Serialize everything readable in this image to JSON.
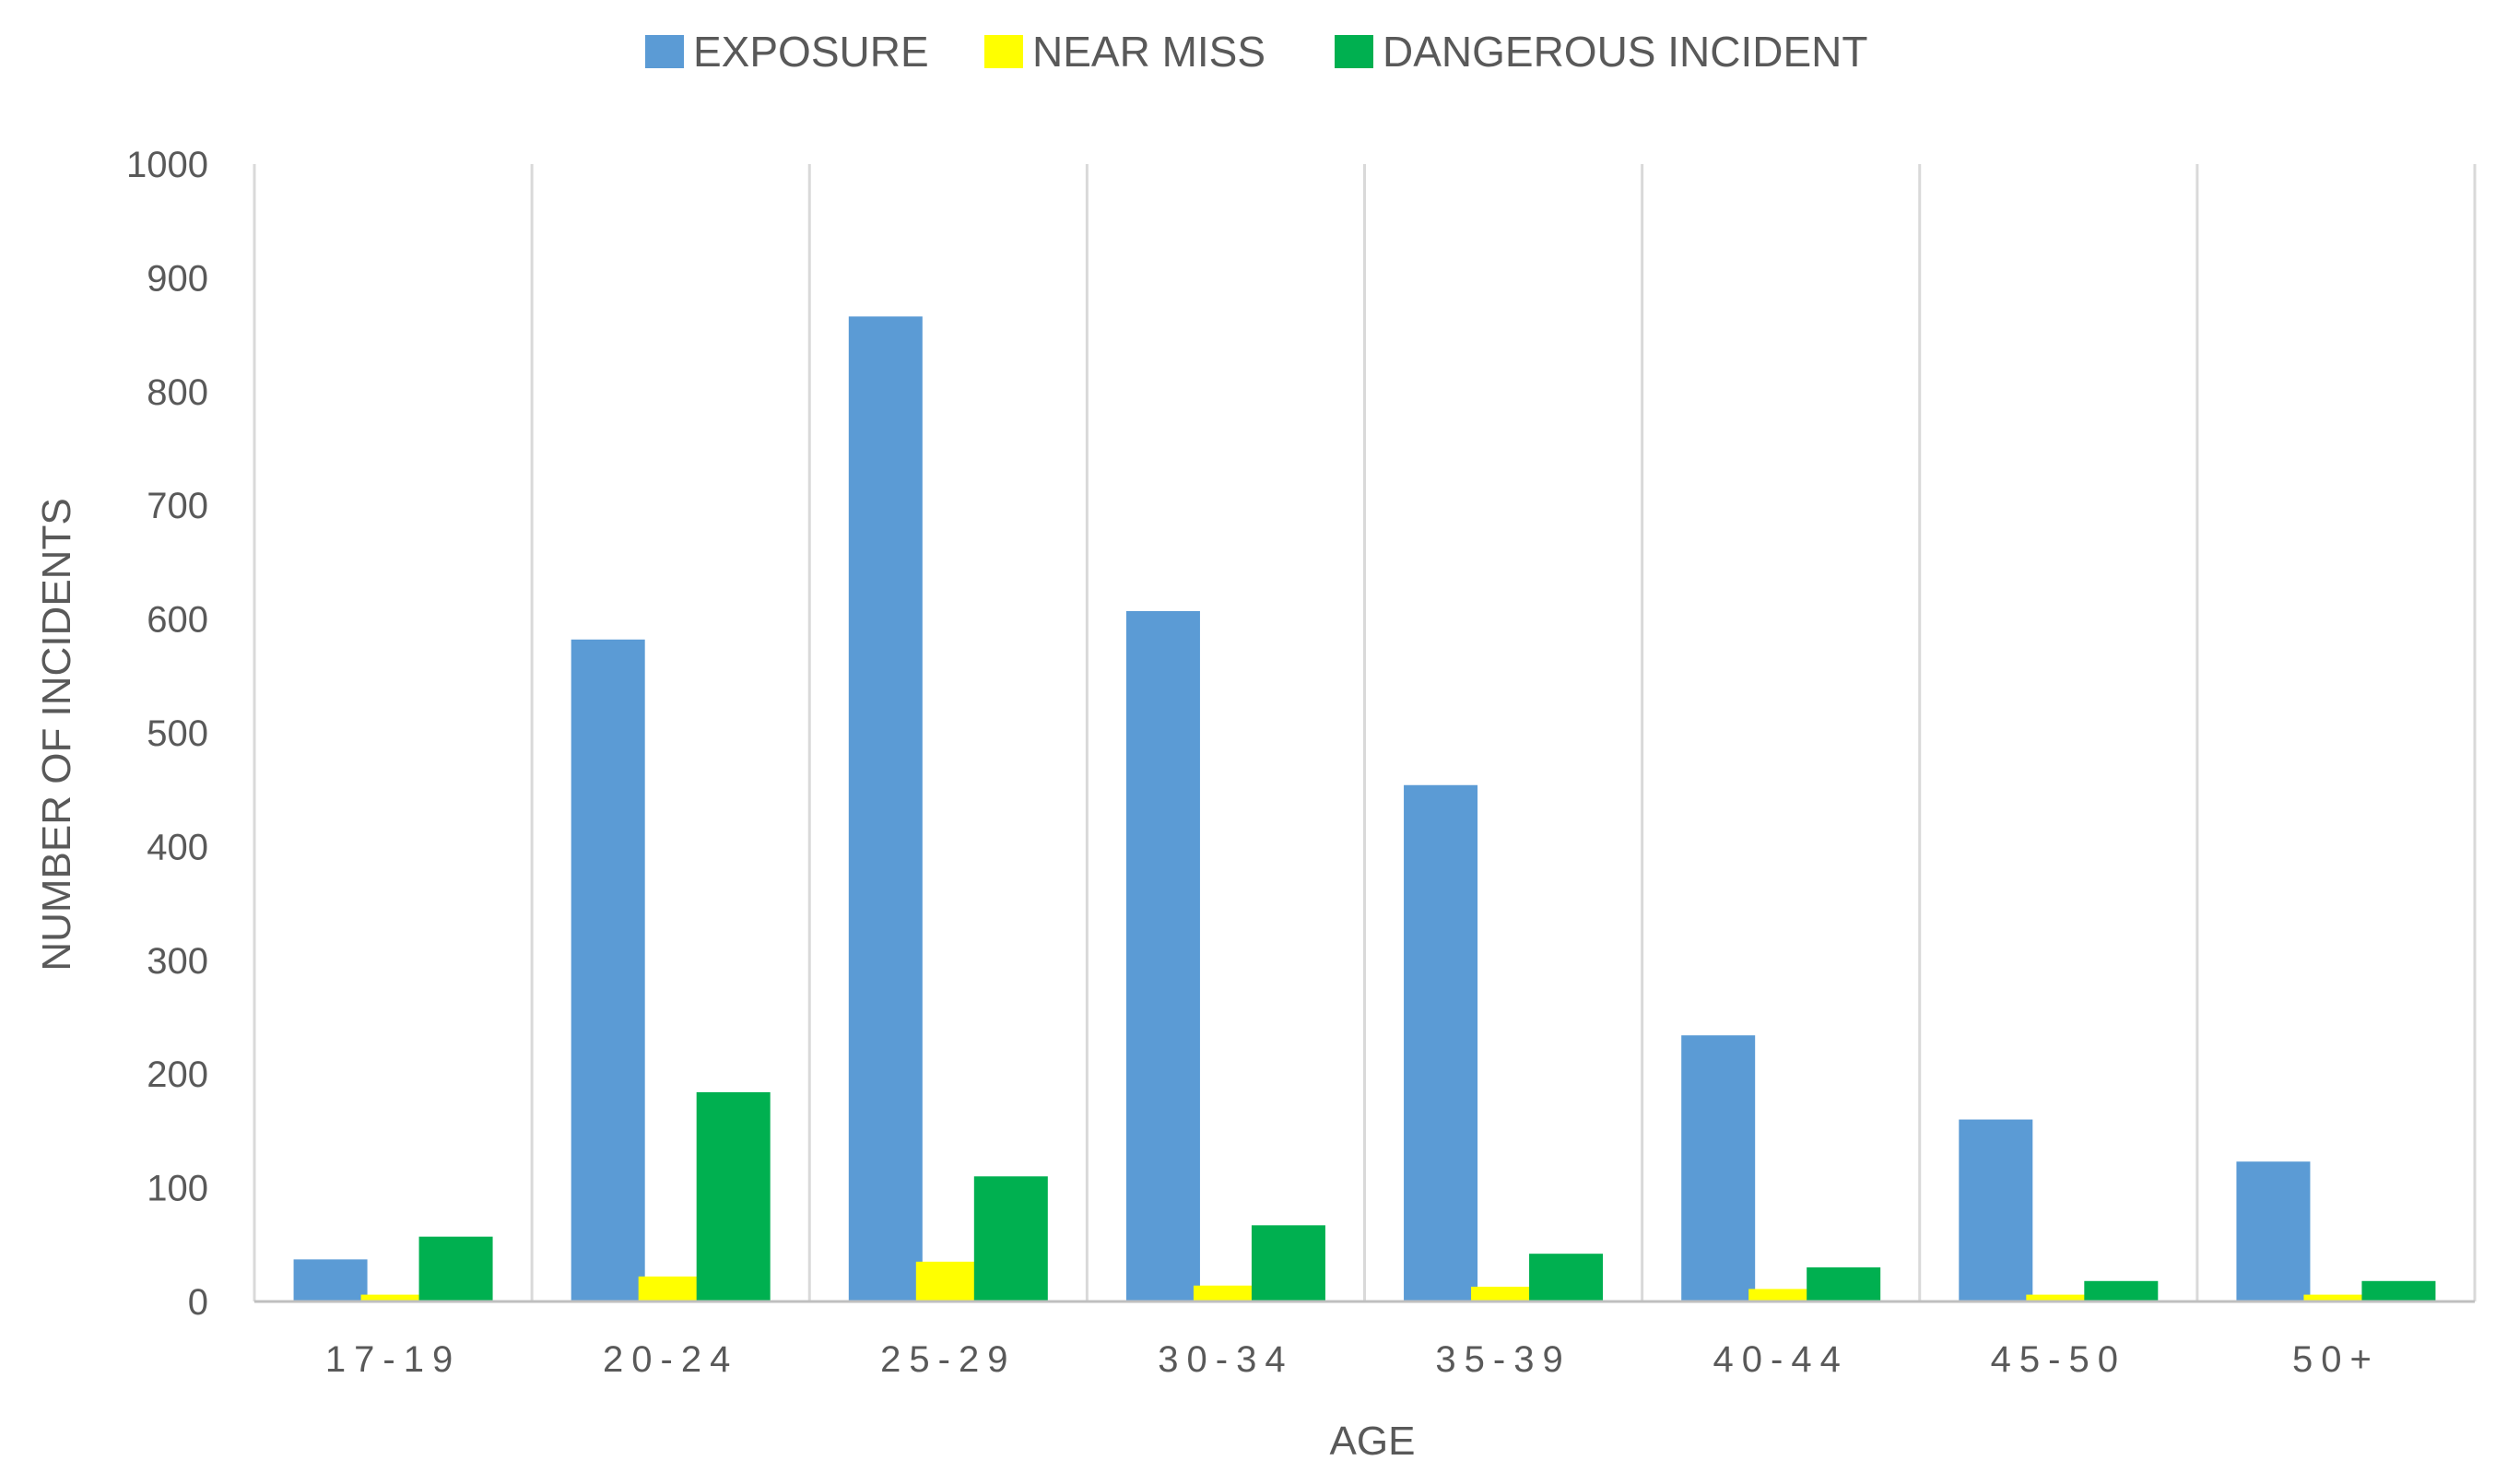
{
  "chart_data": {
    "type": "bar",
    "title": "",
    "xlabel": "AGE",
    "ylabel": "NUMBER OF INCIDENTS",
    "ylim": [
      0,
      1000
    ],
    "yticks": [
      0,
      100,
      200,
      300,
      400,
      500,
      600,
      700,
      800,
      900,
      1000
    ],
    "categories": [
      "17-19",
      "20-24",
      "25-29",
      "30-34",
      "35-39",
      "40-44",
      "45-50",
      "50+"
    ],
    "series": [
      {
        "name": "EXPOSURE",
        "color": "#5B9BD5",
        "values": [
          37,
          582,
          866,
          607,
          454,
          234,
          160,
          123
        ]
      },
      {
        "name": "NEAR MISS",
        "color": "#FFFF00",
        "values": [
          6,
          22,
          35,
          14,
          13,
          11,
          6,
          6
        ]
      },
      {
        "name": "DANGEROUS INCIDENT",
        "color": "#00B050",
        "values": [
          57,
          184,
          110,
          67,
          42,
          30,
          18,
          18
        ]
      }
    ],
    "grid": {
      "vertical_separators": true,
      "horizontal": false
    },
    "legend_position": "top"
  }
}
